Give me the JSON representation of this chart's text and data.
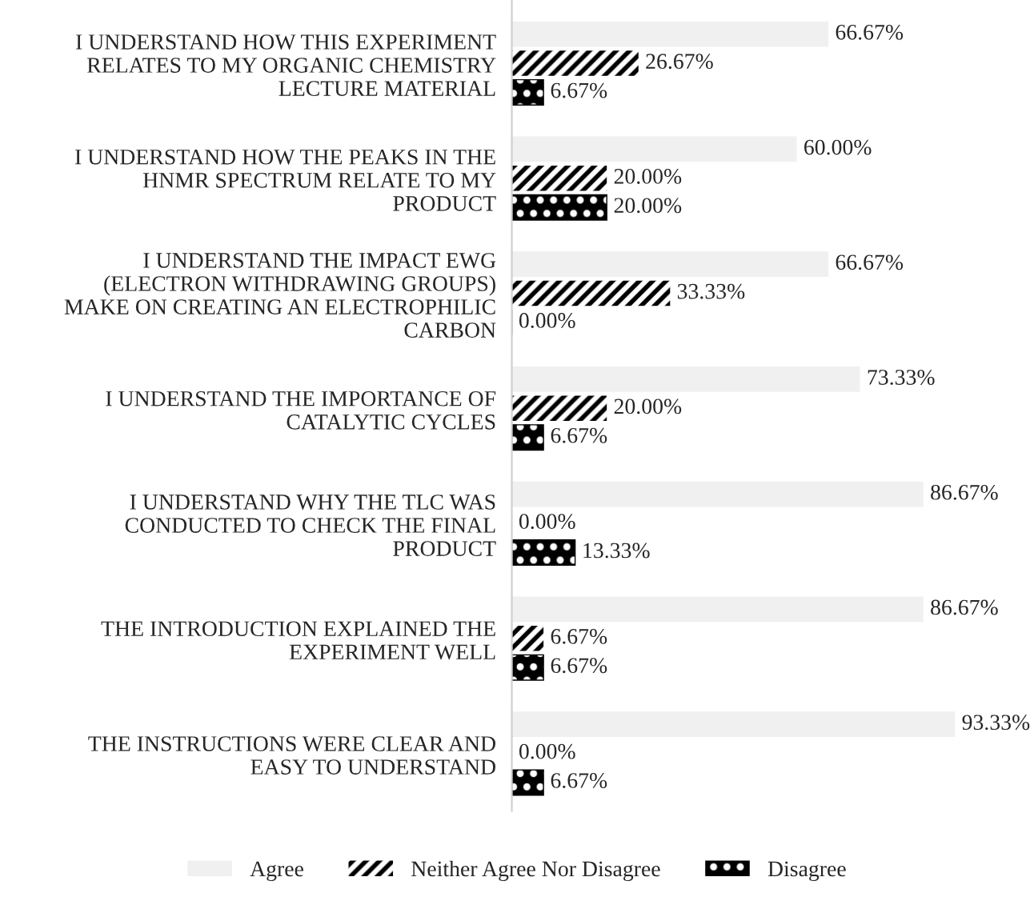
{
  "chart_data": {
    "type": "bar",
    "orientation": "horizontal",
    "tick_labels": "y",
    "legend": "bottom",
    "grid": false,
    "categories": [
      "I UNDERSTAND HOW THIS EXPERIMENT\nRELATES TO MY ORGANIC CHEMISTRY\nLECTURE MATERIAL",
      "I UNDERSTAND HOW THE PEAKS IN THE\nHNMR SPECTRUM RELATE TO MY\nPRODUCT",
      "I UNDERSTAND THE IMPACT EWG\n(ELECTRON WITHDRAWING GROUPS)\nMAKE ON CREATING AN ELECTROPHILIC\nCARBON",
      "I UNDERSTAND THE IMPORTANCE OF\nCATALYTIC CYCLES",
      "I UNDERSTAND WHY THE TLC WAS\nCONDUCTED TO CHECK THE FINAL\nPRODUCT",
      "THE INTRODUCTION EXPLAINED THE\nEXPERIMENT WELL",
      "THE INSTRUCTIONS WERE CLEAR AND\nEASY TO UNDERSTAND"
    ],
    "series": [
      {
        "name": "Agree",
        "color": "#f0f0f0",
        "values": [
          66.67,
          60.0,
          66.67,
          73.33,
          86.67,
          86.67,
          93.33
        ],
        "value_labels": [
          "66.67%",
          "60.00%",
          "66.67%",
          "73.33%",
          "86.67%",
          "86.67%",
          "93.33%"
        ]
      },
      {
        "name": "Neither Agree Nor Disagree",
        "color": "#000000",
        "values": [
          26.67,
          20.0,
          33.33,
          20.0,
          0.0,
          6.67,
          0.0
        ],
        "value_labels": [
          "26.67%",
          "20.00%",
          "33.33%",
          "20.00%",
          "0.00%",
          "6.67%",
          "0.00%"
        ]
      },
      {
        "name": "Disagree",
        "color": "#000000",
        "values": [
          6.67,
          20.0,
          0.0,
          6.67,
          13.33,
          6.67,
          6.67
        ],
        "value_labels": [
          "6.67%",
          "20.00%",
          "0.00%",
          "6.67%",
          "13.33%",
          "6.67%",
          "6.67%"
        ]
      }
    ]
  }
}
